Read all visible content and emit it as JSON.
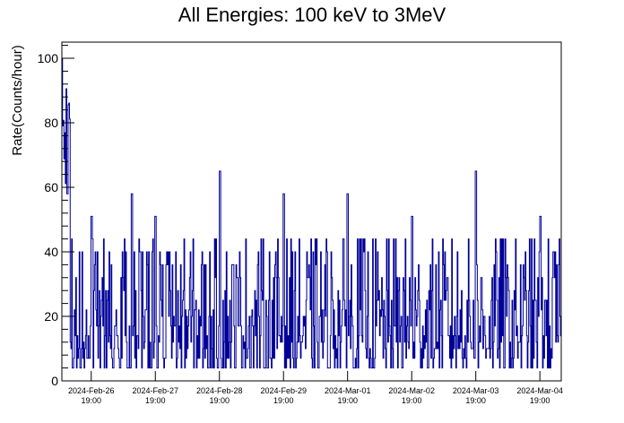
{
  "chart_data": {
    "type": "line",
    "title": "All Energies:  100 keV to 3MeV",
    "xlabel": "",
    "ylabel": "Rate(Counts/hour)",
    "ylim": [
      0,
      105
    ],
    "yticks": [
      0,
      20,
      40,
      60,
      80,
      100
    ],
    "grid": false,
    "legend": "none",
    "x_range": [
      "2024-02-26 08:00",
      "2024-03-05 03:00"
    ],
    "xticks": [
      {
        "date": "2024-Feb-26",
        "time": "19:00"
      },
      {
        "date": "2024-Feb-27",
        "time": "19:00"
      },
      {
        "date": "2024-Feb-28",
        "time": "19:00"
      },
      {
        "date": "2024-Feb-29",
        "time": "19:00"
      },
      {
        "date": "2024-Mar-01",
        "time": "19:00"
      },
      {
        "date": "2024-Mar-02",
        "time": "19:00"
      },
      {
        "date": "2024-Mar-03",
        "time": "19:00"
      },
      {
        "date": "2024-Mar-04",
        "time": "19:00"
      }
    ],
    "series": [
      {
        "name": "",
        "color": "#000099",
        "x": [
          "2024-02-26 08:00",
          "2024-02-26 10:00",
          "2024-02-26 19:00",
          "2024-02-27 10:00",
          "2024-02-27 19:00",
          "2024-02-28 19:00",
          "2024-02-29 19:00",
          "2024-03-01 19:00",
          "2024-03-02 19:00",
          "2024-03-03 19:00",
          "2024-03-04 19:00",
          "2024-03-05 03:00"
        ],
        "values": [
          100,
          58,
          51,
          58,
          51,
          65,
          58,
          58,
          51,
          65,
          51,
          51
        ],
        "typical_range": [
          4,
          44
        ]
      }
    ]
  },
  "colors": {
    "line": "#000099",
    "axis": "#000000",
    "background": "#ffffff"
  }
}
